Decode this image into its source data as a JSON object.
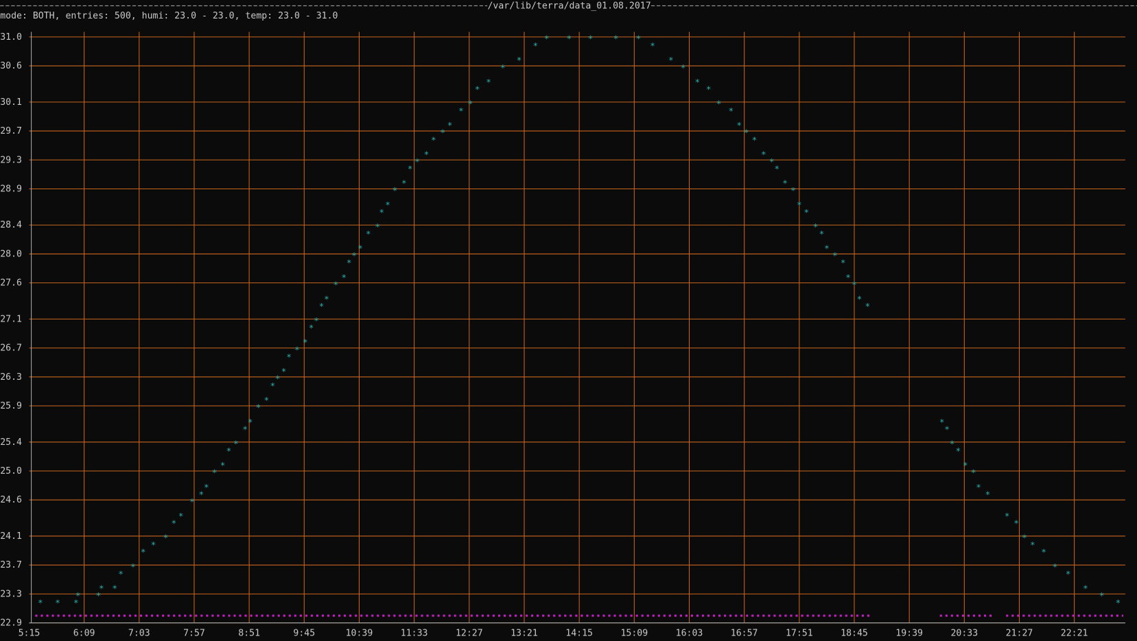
{
  "chart_data": {
    "type": "scatter",
    "title": "/var/lib/terra/data_01.08.2017",
    "subtitle": "mode: BOTH, entries: 500, humi: 23.0 - 23.0, temp: 23.0 - 31.0",
    "xlim": [
      315,
      1391
    ],
    "ylim": [
      22.9,
      31
    ],
    "xticks": [
      {
        "value": 315,
        "label": "5:15"
      },
      {
        "value": 369,
        "label": "6:09"
      },
      {
        "value": 423,
        "label": "7:03"
      },
      {
        "value": 477,
        "label": "7:57"
      },
      {
        "value": 531,
        "label": "8:51"
      },
      {
        "value": 585,
        "label": "9:45"
      },
      {
        "value": 639,
        "label": "10:39"
      },
      {
        "value": 693,
        "label": "11:33"
      },
      {
        "value": 747,
        "label": "12:27"
      },
      {
        "value": 801,
        "label": "13:21"
      },
      {
        "value": 855,
        "label": "14:15"
      },
      {
        "value": 909,
        "label": "15:09"
      },
      {
        "value": 963,
        "label": "16:03"
      },
      {
        "value": 1017,
        "label": "16:57"
      },
      {
        "value": 1071,
        "label": "17:51"
      },
      {
        "value": 1125,
        "label": "18:45"
      },
      {
        "value": 1179,
        "label": "19:39"
      },
      {
        "value": 1233,
        "label": "20:33"
      },
      {
        "value": 1287,
        "label": "21:27"
      },
      {
        "value": 1341,
        "label": "22:21"
      }
    ],
    "yticks": [
      {
        "value": 31,
        "label": "31.0"
      },
      30.6,
      30.1,
      29.7,
      29.3,
      28.9,
      28.4,
      {
        "value": 28,
        "label": "28.0"
      },
      27.6,
      27.1,
      26.7,
      26.3,
      25.9,
      25.4,
      {
        "value": 25,
        "label": "25.0"
      },
      24.6,
      24.1,
      23.7,
      23.3,
      22.9
    ],
    "grid": true,
    "grid_color": "#c8641e",
    "series": [
      {
        "type": "scatter",
        "color": "#2aaeae",
        "x": [
          326,
          343,
          361,
          363,
          383,
          386,
          399,
          405,
          417,
          427,
          437,
          449,
          457,
          464,
          475,
          484,
          489,
          497,
          505,
          511,
          518,
          527,
          532,
          540,
          548,
          554,
          559,
          565,
          570,
          578,
          586,
          592,
          597,
          602,
          607,
          616,
          624,
          629,
          634,
          640,
          648,
          657,
          661,
          667,
          674,
          683,
          689,
          696,
          705,
          712,
          721,
          728,
          739,
          748,
          755,
          766,
          780,
          796,
          812,
          823,
          845,
          866,
          891,
          913,
          927,
          945,
          957,
          971,
          982,
          992,
          1004,
          1012,
          1019,
          1027,
          1036,
          1044,
          1049,
          1057,
          1065,
          1071,
          1078,
          1087,
          1093,
          1098,
          1106,
          1114,
          1119,
          1125,
          1130,
          1138,
          1211,
          1216,
          1221,
          1227,
          1234,
          1242,
          1247,
          1256,
          1275,
          1284,
          1292,
          1300,
          1311,
          1322,
          1335,
          1352,
          1368,
          1384
        ],
        "values": [
          23.2,
          23.2,
          23.2,
          23.3,
          23.3,
          23.4,
          23.4,
          23.6,
          23.7,
          23.9,
          24,
          24.1,
          24.3,
          24.4,
          24.6,
          24.7,
          24.8,
          25,
          25.1,
          25.3,
          25.4,
          25.6,
          25.7,
          25.9,
          26,
          26.2,
          26.3,
          26.4,
          26.6,
          26.7,
          26.8,
          27,
          27.1,
          27.3,
          27.4,
          27.6,
          27.7,
          27.9,
          28,
          28.1,
          28.3,
          28.4,
          28.6,
          28.7,
          28.9,
          29,
          29.2,
          29.3,
          29.4,
          29.6,
          29.7,
          29.8,
          30,
          30.1,
          30.3,
          30.4,
          30.6,
          30.7,
          30.9,
          31,
          31,
          31,
          31,
          31,
          30.9,
          30.7,
          30.6,
          30.4,
          30.3,
          30.1,
          30,
          29.8,
          29.7,
          29.6,
          29.4,
          29.3,
          29.2,
          29,
          28.9,
          28.7,
          28.6,
          28.4,
          28.3,
          28.1,
          28,
          27.9,
          27.7,
          27.6,
          27.4,
          27.3,
          25.7,
          25.6,
          25.4,
          25.3,
          25.1,
          25,
          24.8,
          24.7,
          24.4,
          24.3,
          24.1,
          24,
          23.9,
          23.7,
          23.6,
          23.4,
          23.3,
          23.2
        ]
      },
      {
        "type": "line",
        "color": "#c020c0",
        "x": [
          321,
          1140,
          null,
          1209,
          1260,
          null,
          1274,
          1389
        ],
        "values": [
          23,
          23,
          null,
          23,
          23,
          null,
          23,
          23
        ]
      }
    ]
  }
}
